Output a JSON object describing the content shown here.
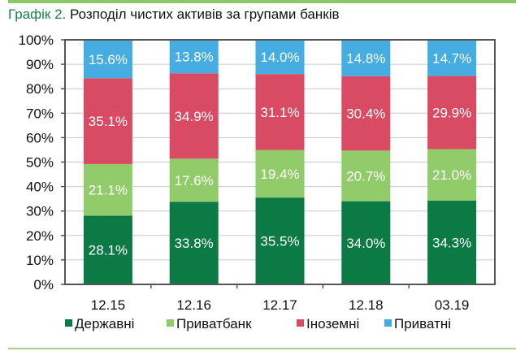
{
  "title": {
    "number": "Графік 2.",
    "text": "Розподіл чистих активів за групами банків"
  },
  "chart_data": {
    "type": "bar",
    "stacked": true,
    "categories": [
      "12.15",
      "12.16",
      "12.17",
      "12.18",
      "03.19"
    ],
    "series": [
      {
        "name": "Державні",
        "color": "#0b7a45",
        "values": [
          28.1,
          33.8,
          35.5,
          34.0,
          34.3
        ]
      },
      {
        "name": "Приватбанк",
        "color": "#92cc6a",
        "values": [
          21.1,
          17.6,
          19.4,
          20.7,
          21.0
        ]
      },
      {
        "name": "Іноземні",
        "color": "#d94b63",
        "values": [
          35.1,
          34.9,
          31.1,
          30.4,
          29.9
        ]
      },
      {
        "name": "Приватні",
        "color": "#45ade2",
        "values": [
          15.6,
          13.8,
          14.0,
          14.8,
          14.7
        ]
      }
    ],
    "ylim": [
      0,
      100
    ],
    "yticks": [
      "0%",
      "10%",
      "20%",
      "30%",
      "40%",
      "50%",
      "60%",
      "70%",
      "80%",
      "90%",
      "100%"
    ],
    "grid": true,
    "legend": "bottom",
    "data_label_format": "%"
  }
}
